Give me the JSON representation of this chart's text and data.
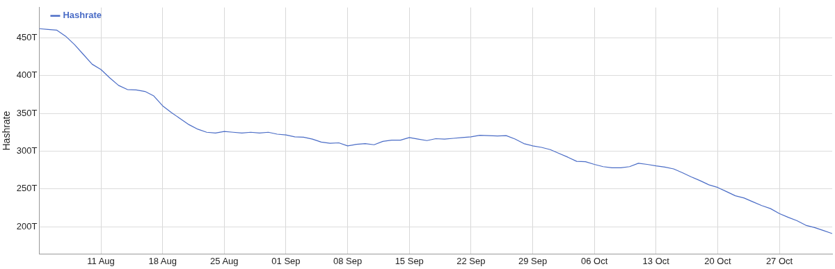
{
  "chart_data": {
    "type": "line",
    "ylabel": "Hashrate",
    "legend": "top left",
    "grid": true,
    "marker": "none",
    "line_style": "solid",
    "x": [
      "--08-04",
      "--08-05",
      "--08-06",
      "--08-07",
      "--08-08",
      "--08-09",
      "--08-10",
      "--08-11",
      "--08-12",
      "--08-13",
      "--08-14",
      "--08-15",
      "--08-16",
      "--08-17",
      "--08-18",
      "--08-19",
      "--08-20",
      "--08-21",
      "--08-22",
      "--08-23",
      "--08-24",
      "--08-25",
      "--08-26",
      "--08-27",
      "--08-28",
      "--08-29",
      "--08-30",
      "--08-31",
      "--09-01",
      "--09-02",
      "--09-03",
      "--09-04",
      "--09-05",
      "--09-06",
      "--09-07",
      "--09-08",
      "--09-09",
      "--09-10",
      "--09-11",
      "--09-12",
      "--09-13",
      "--09-14",
      "--09-15",
      "--09-16",
      "--09-17",
      "--09-18",
      "--09-19",
      "--09-20",
      "--09-21",
      "--09-22",
      "--09-23",
      "--09-24",
      "--09-25",
      "--09-26",
      "--09-27",
      "--09-28",
      "--09-29",
      "--09-30",
      "--10-01",
      "--10-02",
      "--10-03",
      "--10-04",
      "--10-05",
      "--10-06",
      "--10-07",
      "--10-08",
      "--10-09",
      "--10-10",
      "--10-11",
      "--10-12",
      "--10-13",
      "--10-14",
      "--10-15",
      "--10-16",
      "--10-17",
      "--10-18",
      "--10-19",
      "--10-20",
      "--10-21",
      "--10-22",
      "--10-23",
      "--10-24",
      "--10-25",
      "--10-26",
      "--10-27",
      "--10-28",
      "--10-29",
      "--10-30",
      "--10-31",
      "--11-01",
      "--11-02"
    ],
    "series": [
      {
        "name": "Hashrate",
        "color": "#4a6cc6",
        "values": [
          462,
          461,
          460,
          452,
          441,
          428,
          415,
          408,
          397,
          387,
          381.5,
          381,
          379,
          373,
          360,
          351,
          343,
          335,
          329,
          325,
          324,
          326,
          325,
          324,
          325,
          324,
          325,
          322.5,
          321.5,
          319,
          318.5,
          316,
          312,
          310.5,
          311,
          307,
          309,
          310,
          308.5,
          313,
          314.5,
          314.5,
          318,
          316,
          314,
          316.5,
          316,
          317,
          318,
          319,
          321,
          320.5,
          320,
          320.5,
          316,
          310,
          307,
          305,
          302,
          297,
          292,
          286.5,
          286,
          282.5,
          279.5,
          278,
          278,
          279.5,
          284,
          282.5,
          280.5,
          279,
          276.5,
          271.5,
          266,
          261,
          255.5,
          252,
          246.5,
          241,
          238,
          233,
          228,
          224,
          217.5,
          212.5,
          208,
          202,
          199,
          195,
          191
        ]
      }
    ],
    "xlim": [
      "--08-04",
      "--11-02"
    ],
    "xticks": [
      {
        "value": "--08-11",
        "label": "11 Aug"
      },
      {
        "value": "--08-18",
        "label": "18 Aug"
      },
      {
        "value": "--08-25",
        "label": "25 Aug"
      },
      {
        "value": "--09-01",
        "label": "01 Sep"
      },
      {
        "value": "--09-08",
        "label": "08 Sep"
      },
      {
        "value": "--09-15",
        "label": "15 Sep"
      },
      {
        "value": "--09-22",
        "label": "22 Sep"
      },
      {
        "value": "--09-29",
        "label": "29 Sep"
      },
      {
        "value": "--10-06",
        "label": "06 Oct"
      },
      {
        "value": "--10-13",
        "label": "13 Oct"
      },
      {
        "value": "--10-20",
        "label": "20 Oct"
      },
      {
        "value": "--10-27",
        "label": "27 Oct"
      }
    ],
    "ylim": [
      164,
      490
    ],
    "yticks": [
      {
        "value": 200,
        "label": "200T"
      },
      {
        "value": 250,
        "label": "250T"
      },
      {
        "value": 300,
        "label": "300T"
      },
      {
        "value": 350,
        "label": "350T"
      },
      {
        "value": 400,
        "label": "400T"
      },
      {
        "value": 450,
        "label": "450T"
      }
    ]
  }
}
